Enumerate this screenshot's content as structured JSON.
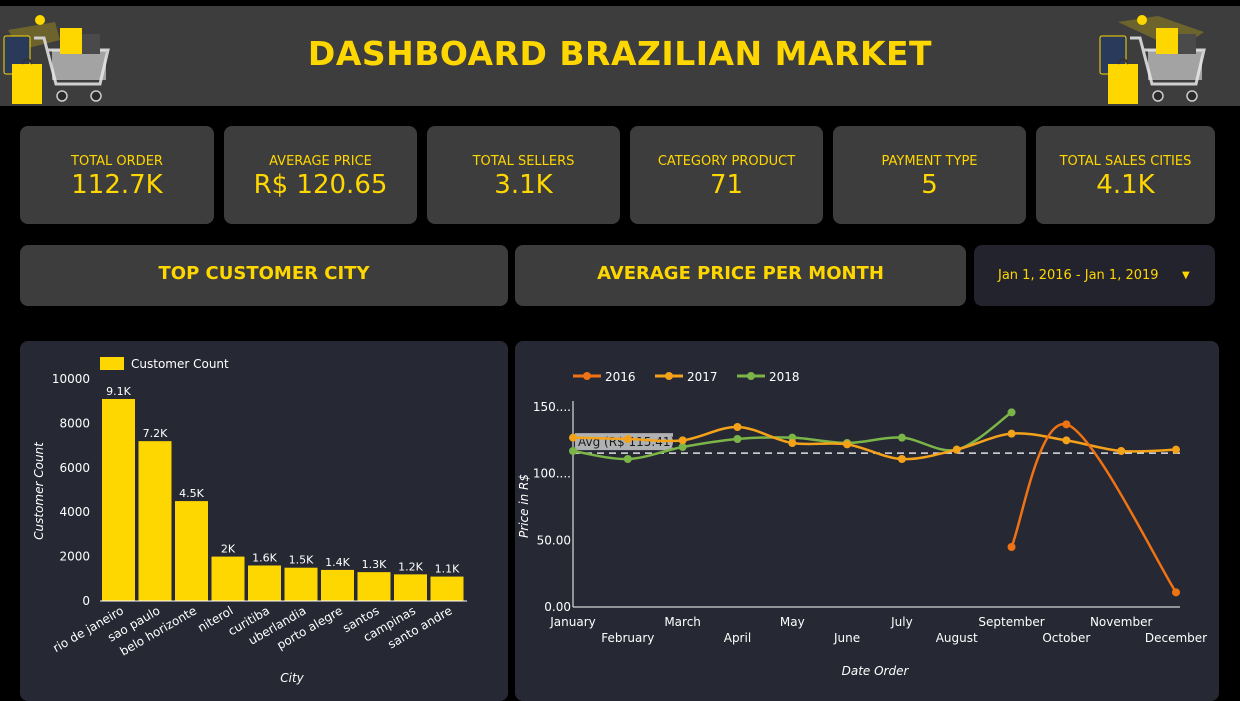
{
  "header": {
    "title": "DASHBOARD BRAZILIAN MARKET"
  },
  "kpis": [
    {
      "label": "TOTAL ORDER",
      "value": "112.7K"
    },
    {
      "label": "AVERAGE PRICE",
      "value": "R$ 120.65"
    },
    {
      "label": "TOTAL SELLERS",
      "value": "3.1K"
    },
    {
      "label": "CATEGORY PRODUCT",
      "value": "71"
    },
    {
      "label": "PAYMENT TYPE",
      "value": "5"
    },
    {
      "label": "TOTAL SALES CITIES",
      "value": "4.1K"
    }
  ],
  "sections": {
    "top_city": "TOP CUSTOMER CITY",
    "avg_price": "AVERAGE PRICE PER MONTH"
  },
  "date_filter": {
    "value": "Jan 1, 2016 - Jan 1, 2019",
    "icon": "chevron-down-icon"
  },
  "colors": {
    "accent": "#FFD700",
    "panel": "#3d3d3d",
    "chart_bg": "#262834",
    "series_2016": "#F07313",
    "series_2017": "#F5A21B",
    "series_2018": "#7BB547"
  },
  "chart_data": [
    {
      "type": "bar",
      "legend": "Customer Count",
      "legend_position": "top-left",
      "categories": [
        "rio de janeiro",
        "sao paulo",
        "belo horizonte",
        "niterol",
        "curitiba",
        "uberlandia",
        "porto alegre",
        "santos",
        "campinas",
        "santo andre"
      ],
      "values": [
        9100,
        7200,
        4500,
        2000,
        1600,
        1500,
        1400,
        1300,
        1200,
        1100
      ],
      "data_labels": [
        "9.1K",
        "7.2K",
        "4.5K",
        "2K",
        "1.6K",
        "1.5K",
        "1.4K",
        "1.3K",
        "1.2K",
        "1.1K"
      ],
      "xlabel": "City",
      "ylabel": "Customer Count",
      "ylim": [
        0,
        10000
      ],
      "yticks": [
        0,
        2000,
        4000,
        6000,
        8000,
        10000
      ],
      "grid": false
    },
    {
      "type": "line",
      "categories": [
        "January",
        "February",
        "March",
        "April",
        "May",
        "June",
        "July",
        "August",
        "September",
        "October",
        "November",
        "December"
      ],
      "series": [
        {
          "name": "2016",
          "color": "#F07313",
          "points": [
            [
              8,
              45
            ],
            [
              9,
              137
            ],
            [
              11,
              11
            ]
          ]
        },
        {
          "name": "2017",
          "color": "#F5A21B",
          "points": [
            [
              0,
              127
            ],
            [
              1,
              126
            ],
            [
              2,
              125
            ],
            [
              3,
              135
            ],
            [
              4,
              123
            ],
            [
              5,
              122
            ],
            [
              6,
              111
            ],
            [
              7,
              118
            ],
            [
              8,
              130
            ],
            [
              9,
              125
            ],
            [
              10,
              117
            ],
            [
              11,
              118
            ]
          ]
        },
        {
          "name": "2018",
          "color": "#7BB547",
          "points": [
            [
              0,
              117
            ],
            [
              1,
              111
            ],
            [
              2,
              120
            ],
            [
              3,
              126
            ],
            [
              4,
              127
            ],
            [
              5,
              123
            ],
            [
              6,
              127
            ],
            [
              7,
              118
            ],
            [
              8,
              146
            ]
          ]
        }
      ],
      "reference_line": {
        "label": "Avg (R$ 115.41)",
        "value": 115.41
      },
      "xlabel": "Date Order",
      "ylabel": "Price in R$",
      "ylim": [
        0,
        150
      ],
      "ytick_labels": [
        "0.00",
        "50.00",
        "100....",
        "150...."
      ],
      "legend_position": "top-left",
      "grid": false
    }
  ]
}
